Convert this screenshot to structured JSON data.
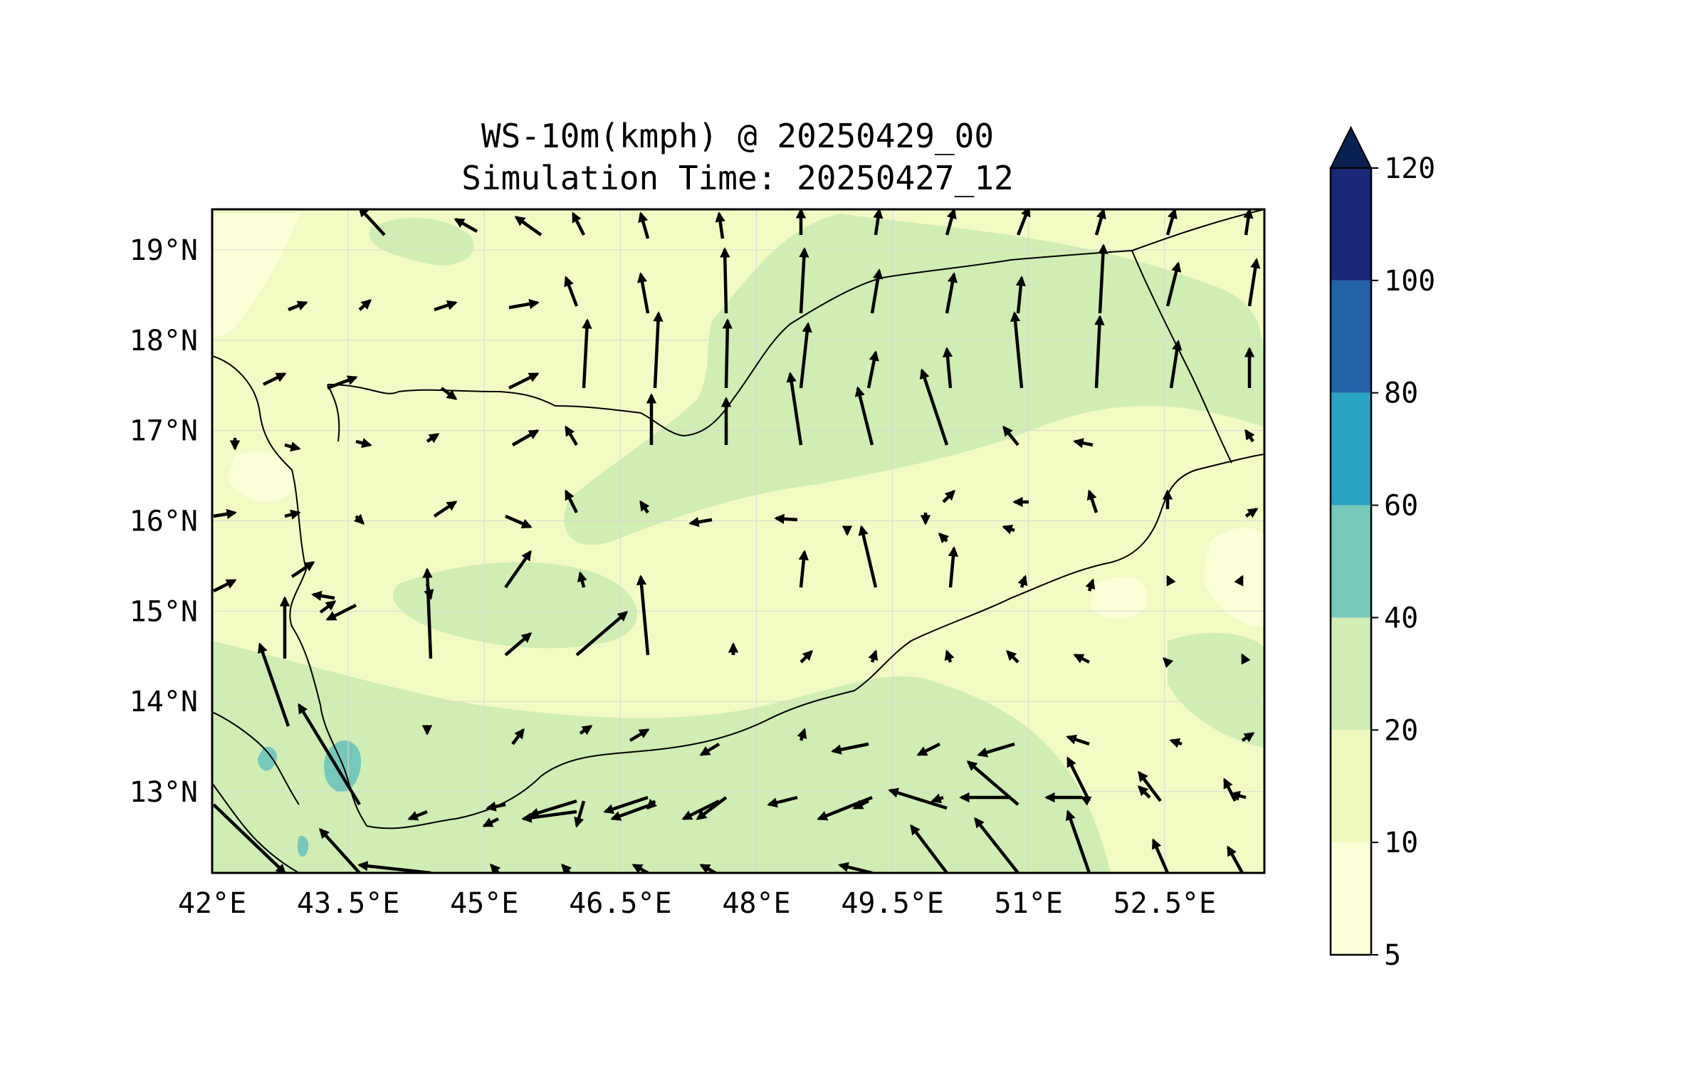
{
  "title": {
    "line1": "WS-10m(kmph) @ 20250429_00",
    "line2": "Simulation Time: 20250427_12"
  },
  "chart_data": {
    "type": "map",
    "variable": "10 m wind speed (filled contours) with wind vectors",
    "units": "kmph",
    "extent": {
      "lon": [
        42,
        53.6
      ],
      "lat": [
        12.1,
        19.45
      ]
    },
    "lon_ticks": [
      "42°E",
      "43.5°E",
      "45°E",
      "46.5°E",
      "48°E",
      "49.5°E",
      "51°E",
      "52.5°E"
    ],
    "lat_ticks": [
      "13°N",
      "14°N",
      "15°N",
      "16°N",
      "17°N",
      "18°N",
      "19°N"
    ],
    "colorbar": {
      "levels": [
        5,
        10,
        20,
        40,
        60,
        80,
        100,
        120
      ],
      "tick_labels": [
        "5",
        "10",
        "20",
        "40",
        "60",
        "80",
        "100",
        "120"
      ],
      "colors": [
        "#fdffd9",
        "#eff9bd",
        "#d0edb3",
        "#76c8bb",
        "#2ba3c3",
        "#2262a9",
        "#1a2878"
      ],
      "extend_color": "#0a2052",
      "extend": "max"
    },
    "colors": {
      "coast": "#000000",
      "arrow": "#000000",
      "grid": "#d8d8d8"
    }
  }
}
